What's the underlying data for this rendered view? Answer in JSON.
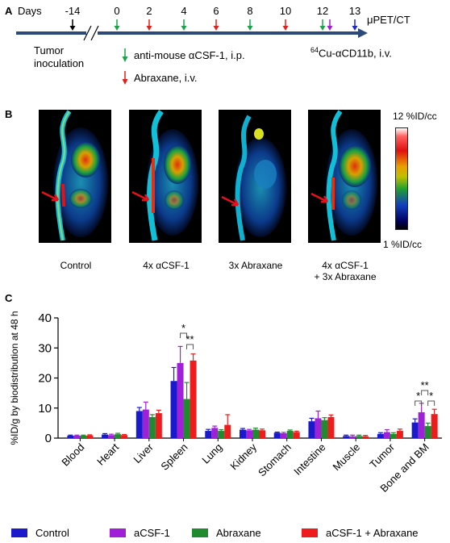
{
  "panel_a": {
    "label": "A",
    "days_label": "Days",
    "days": [
      "-14",
      "0",
      "2",
      "4",
      "6",
      "8",
      "10",
      "12",
      "13"
    ],
    "end_label": "μPET/CT",
    "tumor_label_line1": "Tumor",
    "tumor_label_line2": "inoculation",
    "legend_csf1": "anti-mouse αCSF-1, i.p.",
    "legend_abraxane": "Abraxane, i.v.",
    "tracer_sup": "64",
    "tracer_label": "Cu-αCD11b, i.v.",
    "colors": {
      "black": "#000000",
      "green": "#1aa34a",
      "red": "#e0201b",
      "purple": "#a020d0",
      "blue": "#1a2cc0",
      "axis": "#2b4a7a"
    }
  },
  "panel_b": {
    "label": "B",
    "scale_max": "12 %ID/cc",
    "scale_min": "1 %ID/cc",
    "captions": [
      {
        "line1": "Control",
        "line2": ""
      },
      {
        "line1": "4x αCSF-1",
        "line2": ""
      },
      {
        "line1": "3x  Abraxane",
        "line2": ""
      },
      {
        "line1": "4x αCSF-1",
        "line2": "+ 3x Abraxane"
      }
    ]
  },
  "panel_c": {
    "label": "C"
  },
  "chart_data": {
    "type": "bar",
    "ylabel": "%ID/g by biodistribution at 48 h",
    "ylim": [
      0,
      40
    ],
    "yticks": [
      "0",
      "10",
      "20",
      "30",
      "40"
    ],
    "categories": [
      "Blood",
      "Heart",
      "Liver",
      "Spleen",
      "Lung",
      "Kidney",
      "Stomach",
      "Intestine",
      "Muscle",
      "Tumor",
      "Bone and BM"
    ],
    "series": [
      {
        "name": "Control",
        "color": "#1a1acc",
        "values": [
          0.8,
          1.2,
          9.0,
          19.0,
          2.4,
          2.8,
          1.8,
          5.6,
          0.7,
          1.4,
          5.2
        ],
        "errors": [
          0.2,
          0.3,
          1.2,
          4.5,
          0.5,
          0.4,
          0.2,
          1.0,
          0.3,
          0.4,
          1.2
        ]
      },
      {
        "name": "aCSF-1",
        "color": "#a020d8",
        "values": [
          0.8,
          1.0,
          9.5,
          25.0,
          3.4,
          2.6,
          1.6,
          6.6,
          0.6,
          2.0,
          8.6
        ],
        "errors": [
          0.2,
          0.3,
          2.5,
          5.5,
          0.6,
          0.3,
          0.3,
          2.4,
          0.4,
          0.8,
          3.0
        ]
      },
      {
        "name": "Abraxane",
        "color": "#1f8a2e",
        "values": [
          0.8,
          1.3,
          7.0,
          13.0,
          2.4,
          2.8,
          2.4,
          6.0,
          0.7,
          1.4,
          4.0
        ],
        "errors": [
          0.2,
          0.3,
          0.8,
          5.5,
          0.4,
          0.5,
          0.3,
          0.8,
          0.3,
          0.4,
          1.0
        ]
      },
      {
        "name": "aCSF-1 + Abraxane",
        "color": "#ee1c1c",
        "values": [
          0.9,
          1.0,
          8.3,
          25.8,
          4.4,
          2.6,
          2.0,
          7.0,
          0.6,
          2.4,
          8.0
        ],
        "errors": [
          0.2,
          0.2,
          1.0,
          2.2,
          3.4,
          0.4,
          0.3,
          0.7,
          0.3,
          0.6,
          1.6
        ]
      }
    ],
    "significance": [
      {
        "category": "Spleen",
        "from": "aCSF-1",
        "to": "Abraxane",
        "label": "*"
      },
      {
        "category": "Spleen",
        "from": "Abraxane",
        "to": "aCSF-1 + Abraxane",
        "label": "**"
      },
      {
        "category": "Bone and BM",
        "from": "Control",
        "to": "aCSF-1",
        "label": "*"
      },
      {
        "category": "Bone and BM",
        "from": "aCSF-1",
        "to": "Abraxane",
        "label": "**"
      },
      {
        "category": "Bone and BM",
        "from": "Abraxane",
        "to": "aCSF-1 + Abraxane",
        "label": "*"
      }
    ],
    "legend_position": "bottom"
  }
}
